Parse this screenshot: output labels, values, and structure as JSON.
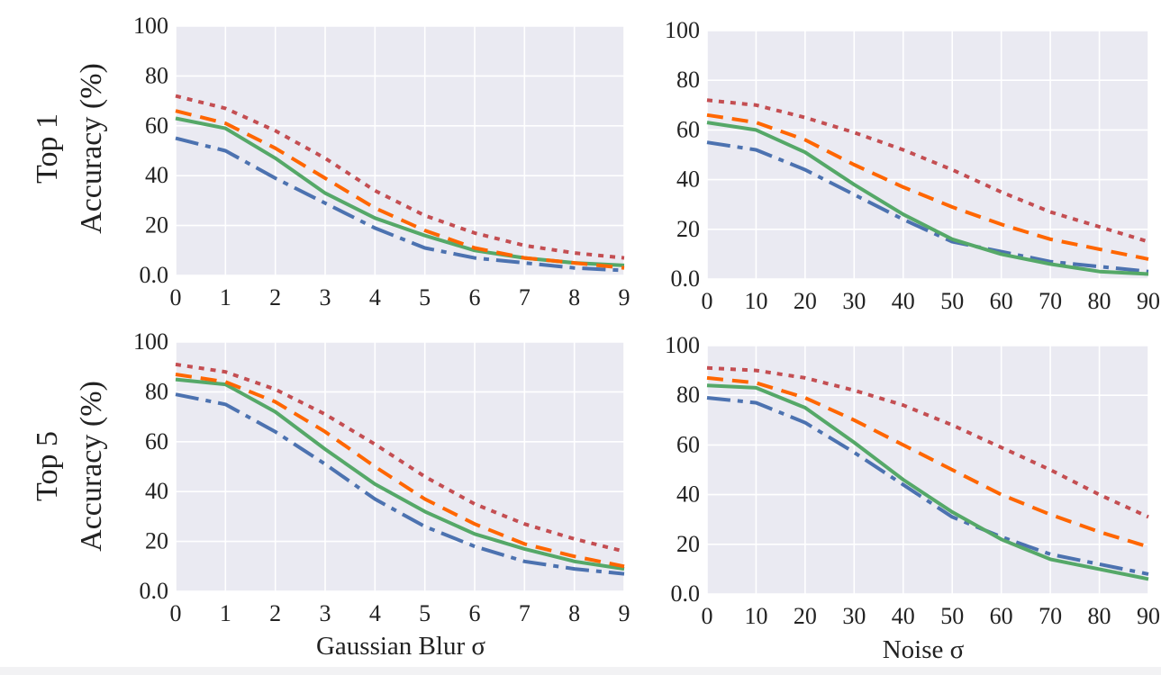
{
  "colors": {
    "background": "#eaeaf2",
    "grid": "#ffffff",
    "series": [
      "#4c72b0",
      "#55a868",
      "#ff6600",
      "#c44e52"
    ]
  },
  "row_labels": {
    "top1": "Top 1",
    "top5": "Top 5",
    "ylabel": "Accuracy (%)"
  },
  "chart_data": [
    {
      "type": "line",
      "row": "Top 1",
      "xlabel": "",
      "ylabel": "Accuracy (%)",
      "x": [
        0,
        1,
        2,
        3,
        4,
        5,
        6,
        7,
        8,
        9
      ],
      "xticks": [
        "0",
        "1",
        "2",
        "3",
        "4",
        "5",
        "6",
        "7",
        "8",
        "9"
      ],
      "yticks": [
        "0.0",
        "20",
        "40",
        "60",
        "80",
        "100"
      ],
      "ylim": [
        0,
        100
      ],
      "xlim": [
        0,
        9
      ],
      "grid": true,
      "series": [
        {
          "style": "dashdot",
          "values": [
            55,
            50,
            39,
            29,
            19,
            11,
            7,
            5,
            3,
            2
          ]
        },
        {
          "style": "solid",
          "values": [
            63,
            59,
            47,
            33,
            23,
            16,
            10,
            7,
            5,
            4
          ]
        },
        {
          "style": "dashed",
          "values": [
            66,
            61,
            51,
            39,
            27,
            18,
            11,
            7,
            5,
            3
          ]
        },
        {
          "style": "dotted",
          "values": [
            72,
            67,
            58,
            47,
            34,
            24,
            17,
            12,
            9,
            7
          ]
        }
      ]
    },
    {
      "type": "line",
      "row": "Top 1",
      "xlabel": "",
      "ylabel": "",
      "x": [
        0,
        10,
        20,
        30,
        40,
        50,
        60,
        70,
        80,
        90
      ],
      "xticks": [
        "0",
        "10",
        "20",
        "30",
        "40",
        "50",
        "60",
        "70",
        "80",
        "90"
      ],
      "yticks": [
        "0.0",
        "20",
        "40",
        "60",
        "80",
        "100"
      ],
      "ylim": [
        0,
        100
      ],
      "xlim": [
        0,
        90
      ],
      "grid": true,
      "series": [
        {
          "style": "dashdot",
          "values": [
            55,
            52,
            44,
            34,
            24,
            15,
            11,
            7,
            5,
            3
          ]
        },
        {
          "style": "solid",
          "values": [
            63,
            60,
            51,
            38,
            26,
            16,
            10,
            6,
            3,
            2
          ]
        },
        {
          "style": "dashed",
          "values": [
            66,
            63,
            56,
            46,
            37,
            29,
            22,
            16,
            12,
            8
          ]
        },
        {
          "style": "dotted",
          "values": [
            72,
            70,
            65,
            59,
            52,
            44,
            35,
            27,
            21,
            15
          ]
        }
      ]
    },
    {
      "type": "line",
      "row": "Top 5",
      "xlabel": "Gaussian Blur σ",
      "ylabel": "Accuracy (%)",
      "x": [
        0,
        1,
        2,
        3,
        4,
        5,
        6,
        7,
        8,
        9
      ],
      "xticks": [
        "0",
        "1",
        "2",
        "3",
        "4",
        "5",
        "6",
        "7",
        "8",
        "9"
      ],
      "yticks": [
        "0.0",
        "20",
        "40",
        "60",
        "80",
        "100"
      ],
      "ylim": [
        0,
        100
      ],
      "xlim": [
        0,
        9
      ],
      "grid": true,
      "series": [
        {
          "style": "dashdot",
          "values": [
            79,
            75,
            64,
            51,
            37,
            26,
            18,
            12,
            9,
            7
          ]
        },
        {
          "style": "solid",
          "values": [
            85,
            83,
            72,
            57,
            43,
            32,
            23,
            17,
            12,
            9
          ]
        },
        {
          "style": "dashed",
          "values": [
            87,
            84,
            76,
            64,
            50,
            37,
            27,
            19,
            14,
            10
          ]
        },
        {
          "style": "dotted",
          "values": [
            91,
            88,
            81,
            71,
            59,
            46,
            35,
            27,
            21,
            16
          ]
        }
      ]
    },
    {
      "type": "line",
      "row": "Top 5",
      "xlabel": "Noise σ",
      "ylabel": "",
      "x": [
        0,
        10,
        20,
        30,
        40,
        50,
        60,
        70,
        80,
        90
      ],
      "xticks": [
        "0",
        "10",
        "20",
        "30",
        "40",
        "50",
        "60",
        "70",
        "80",
        "90"
      ],
      "yticks": [
        "0.0",
        "20",
        "40",
        "60",
        "80",
        "100"
      ],
      "ylim": [
        0,
        100
      ],
      "xlim": [
        0,
        90
      ],
      "grid": true,
      "series": [
        {
          "style": "dashdot",
          "values": [
            79,
            77,
            69,
            57,
            44,
            31,
            23,
            16,
            12,
            8
          ]
        },
        {
          "style": "solid",
          "values": [
            84,
            83,
            75,
            61,
            46,
            33,
            22,
            14,
            10,
            6
          ]
        },
        {
          "style": "dashed",
          "values": [
            87,
            85,
            79,
            70,
            60,
            50,
            40,
            32,
            25,
            19
          ]
        },
        {
          "style": "dotted",
          "values": [
            91,
            90,
            87,
            82,
            76,
            68,
            59,
            50,
            40,
            31
          ]
        }
      ]
    }
  ]
}
